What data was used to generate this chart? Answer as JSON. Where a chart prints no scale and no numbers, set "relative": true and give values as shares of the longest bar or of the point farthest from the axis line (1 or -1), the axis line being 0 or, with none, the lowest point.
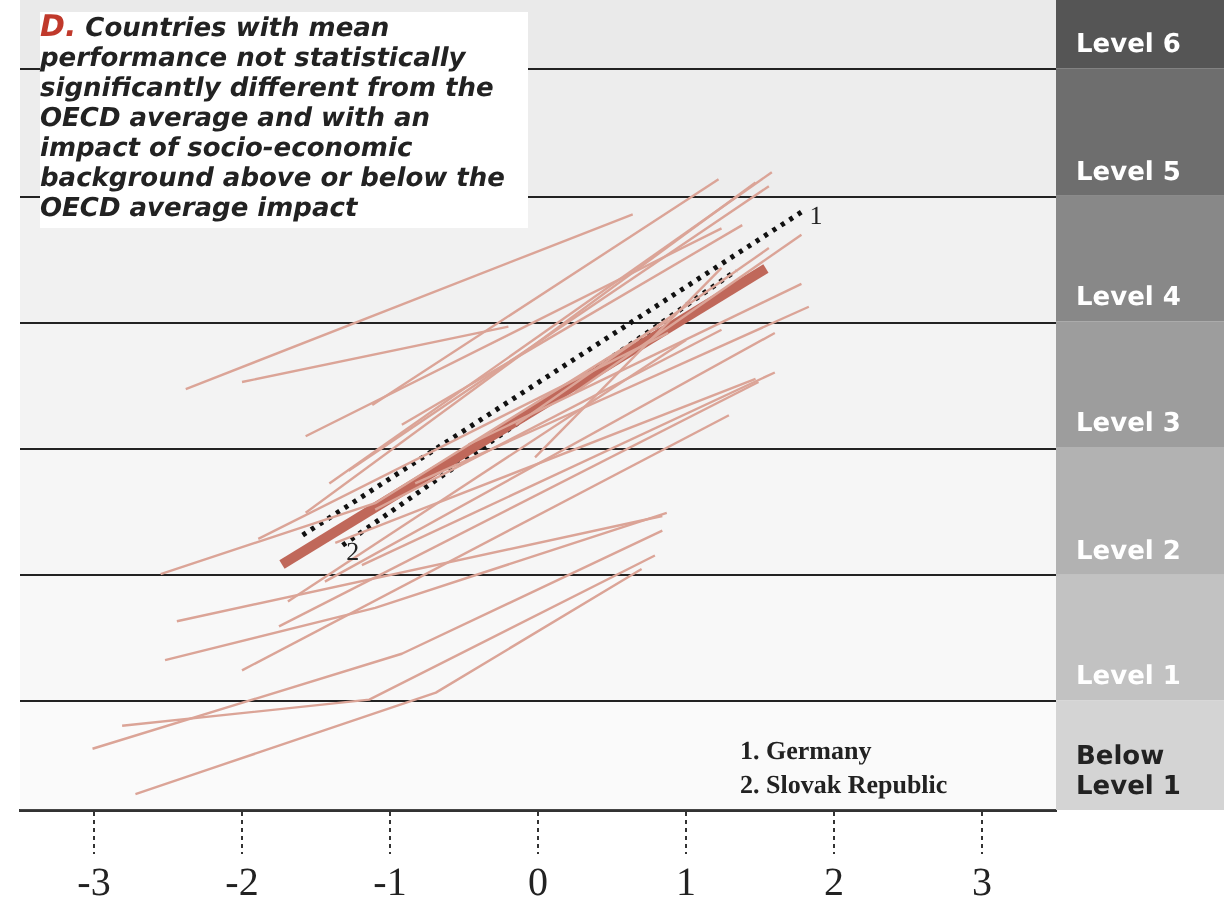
{
  "chart_data": {
    "type": "line",
    "title": "D. Countries with mean performance not statistically significantly different from the OECD average and with an impact of socio-economic background above or below the OECD average impact",
    "relative": true,
    "xlim": [
      -3.5,
      3.5
    ],
    "xticks": [
      -3,
      -2,
      -1,
      0,
      1,
      2,
      3
    ],
    "grid": false,
    "legend": false,
    "marker": "none",
    "bands": [
      {
        "axis": "y",
        "from": 0,
        "to": 0.172,
        "label": "Below Level 1",
        "color": "#d4d4d4"
      },
      {
        "axis": "y",
        "from": 0.172,
        "to": 0.369,
        "label": "Level 1",
        "color": "#c2c2c2"
      },
      {
        "axis": "y",
        "from": 0.369,
        "to": 0.569,
        "label": "Level 2",
        "color": "#b2b2b2"
      },
      {
        "axis": "y",
        "from": 0.569,
        "to": 0.766,
        "label": "Level 3",
        "color": "#9d9d9d"
      },
      {
        "axis": "y",
        "from": 0.766,
        "to": 0.963,
        "label": "Level 4",
        "color": "#888888"
      },
      {
        "axis": "y",
        "from": 0.963,
        "to": 1.163,
        "label": "Level 5",
        "color": "#6e6e6e"
      },
      {
        "axis": "y",
        "from": 1.163,
        "to": 1.27,
        "label": "Level 6",
        "color": "#555555"
      }
    ],
    "annotations": [
      "1. Germany",
      "2. Slovak Republic",
      {
        "text": "1",
        "x": 1.81,
        "y": 0.942
      },
      {
        "text": "2",
        "x": -1.32,
        "y": 0.415
      }
    ],
    "series": [
      {
        "color": "#dba497",
        "x": [
          -2.38,
          0.64
        ],
        "values": [
          0.66,
          0.934
        ]
      },
      {
        "color": "#dba497",
        "x": [
          -2.0,
          -0.2
        ],
        "values": [
          0.671,
          0.758
        ]
      },
      {
        "color": "#dba497",
        "x": [
          -1.57,
          1.24
        ],
        "values": [
          0.586,
          0.912
        ]
      },
      {
        "color": "#dba497",
        "x": [
          -1.12,
          1.22
        ],
        "values": [
          0.635,
          0.989
        ]
      },
      {
        "color": "#dba497",
        "x": [
          -1.41,
          1.58
        ],
        "values": [
          0.512,
          1.0
        ]
      },
      {
        "color": "#dba497",
        "x": [
          -1.57,
          1.47
        ],
        "values": [
          0.466,
          0.984
        ]
      },
      {
        "color": "#dba497",
        "x": [
          -1.89,
          0.88
        ],
        "values": [
          0.425,
          0.748
        ]
      },
      {
        "color": "#dba497",
        "x": [
          -2.55,
          -1.1,
          0.88
        ],
        "values": [
          0.37,
          0.481,
          0.768
        ]
      },
      {
        "color": "#dba497",
        "x": [
          -1.69,
          1.0
        ],
        "values": [
          0.327,
          0.737
        ]
      },
      {
        "color": "#dba497",
        "x": [
          -1.44,
          1.6
        ],
        "values": [
          0.358,
          0.748
        ]
      },
      {
        "color": "#dba497",
        "x": [
          -1.19,
          1.6
        ],
        "values": [
          0.384,
          0.686
        ]
      },
      {
        "color": "#dba497",
        "x": [
          -1.75,
          1.49
        ],
        "values": [
          0.288,
          0.671
        ]
      },
      {
        "color": "#dba497",
        "x": [
          -2.44,
          0.84
        ],
        "values": [
          0.296,
          0.461
        ]
      },
      {
        "color": "#dba497",
        "x": [
          -2.52,
          -1.1,
          0.87
        ],
        "values": [
          0.235,
          0.317,
          0.466
        ]
      },
      {
        "color": "#dba497",
        "x": [
          -2.0,
          1.29
        ],
        "values": [
          0.219,
          0.619
        ]
      },
      {
        "color": "#dba497",
        "x": [
          -3.01,
          -0.92,
          0.84
        ],
        "values": [
          0.096,
          0.245,
          0.438
        ]
      },
      {
        "color": "#dba497",
        "x": [
          -2.81,
          -1.14,
          0.79
        ],
        "values": [
          0.132,
          0.173,
          0.399
        ]
      },
      {
        "color": "#dba497",
        "x": [
          -2.72,
          -0.69,
          0.7
        ],
        "values": [
          0.025,
          0.184,
          0.378
        ]
      },
      {
        "color": "#dba497",
        "x": [
          -0.92,
          1.38
        ],
        "values": [
          0.604,
          0.917
        ]
      },
      {
        "color": "#dba497",
        "x": [
          -0.47,
          1.78
        ],
        "values": [
          0.573,
          0.825
        ]
      },
      {
        "color": "#dba497",
        "x": [
          -0.83,
          1.83
        ],
        "values": [
          0.512,
          0.789
        ]
      },
      {
        "color": "#dba497",
        "x": [
          -1.28,
          1.56
        ],
        "values": [
          0.532,
          0.978
        ]
      },
      {
        "color": "#dba497",
        "x": [
          -1.1,
          1.24
        ],
        "values": [
          0.471,
          0.753
        ]
      },
      {
        "color": "#dba497",
        "x": [
          -1.37,
          1.47
        ],
        "values": [
          0.419,
          0.676
        ]
      },
      {
        "color": "#dba497",
        "x": [
          -0.15,
          1.56
        ],
        "values": [
          0.604,
          0.881
        ]
      },
      {
        "color": "#dba497",
        "x": [
          0.25,
          1.78
        ],
        "values": [
          0.655,
          0.902
        ]
      },
      {
        "color": "#dba497",
        "x": [
          -0.02,
          1.24
        ],
        "values": [
          0.553,
          0.85
        ]
      },
      {
        "color": "#c0685a",
        "x": [
          -1.73,
          1.54
        ],
        "values": [
          0.385,
          0.849
        ]
      },
      {
        "color": "#111111",
        "line_style": "dotted",
        "x": [
          -1.59,
          1.81
        ],
        "values": [
          0.431,
          0.942
        ]
      },
      {
        "color": "#111111",
        "line_style": "dotted",
        "x": [
          -1.32,
          1.34
        ],
        "values": [
          0.415,
          0.846
        ]
      }
    ]
  }
}
